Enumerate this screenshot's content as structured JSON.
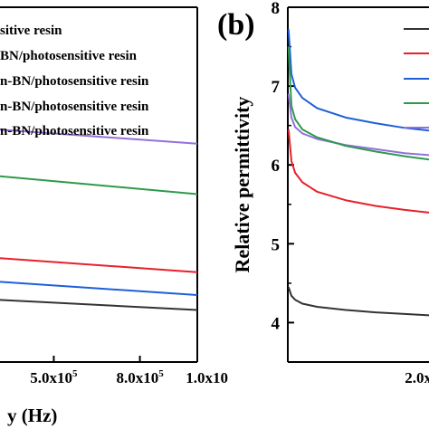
{
  "chart_data": [
    {
      "type": "line",
      "title": "",
      "xlabel": "y (Hz)",
      "ylabel": "",
      "x_tick_labels": [
        "5.0x10",
        "8.0x10",
        "1.0x10"
      ],
      "x_tick_exponents": [
        "5",
        "5",
        ""
      ],
      "xlim": [
        300000,
        1000000
      ],
      "ylim": [
        3.5,
        8.0
      ],
      "legend_position": "top",
      "legend": [
        "sitive resin",
        "BN/photosensitive resin",
        "n-BN/photosensitive resin",
        "n-BN/photosensitive resin",
        "n-BN/photosensitive resin"
      ],
      "series": [
        {
          "color": "#9370DB",
          "x": [
            300000,
            1000000
          ],
          "values": [
            6.45,
            6.27
          ]
        },
        {
          "color": "#2E9A4C",
          "x": [
            300000,
            1000000
          ],
          "values": [
            5.86,
            5.63
          ]
        },
        {
          "color": "#E8202A",
          "x": [
            300000,
            1000000
          ],
          "values": [
            4.82,
            4.64
          ]
        },
        {
          "color": "#1E5FD9",
          "x": [
            300000,
            1000000
          ],
          "values": [
            4.52,
            4.35
          ]
        },
        {
          "color": "#333333",
          "x": [
            300000,
            1000000
          ],
          "values": [
            4.29,
            4.16
          ]
        }
      ]
    },
    {
      "type": "line",
      "panel_label": "(b)",
      "title": "",
      "xlabel": "",
      "ylabel": "Relative permittivity",
      "y_ticks": [
        "4",
        "5",
        "6",
        "7",
        "8"
      ],
      "x_tick_labels": [
        "2.0x10"
      ],
      "x_tick_exponents": [
        "5"
      ],
      "xlim": [
        0,
        300000
      ],
      "ylim": [
        3.5,
        8.0
      ],
      "legend_position": "top-right",
      "series": [
        {
          "color": "#1E5FD9",
          "x": [
            1000,
            5000,
            10000,
            20000,
            40000,
            80000,
            120000,
            160000,
            200000,
            250000,
            300000
          ],
          "values": [
            7.72,
            7.15,
            6.98,
            6.85,
            6.72,
            6.6,
            6.53,
            6.47,
            6.43,
            6.38,
            6.33
          ]
        },
        {
          "color": "#9370DB",
          "x": [
            1000,
            5000,
            10000,
            20000,
            40000,
            80000,
            120000,
            160000,
            200000,
            250000,
            300000
          ],
          "values": [
            6.9,
            6.6,
            6.48,
            6.4,
            6.33,
            6.25,
            6.2,
            6.15,
            6.12,
            6.08,
            6.05
          ]
        },
        {
          "color": "#2E9A4C",
          "x": [
            1000,
            5000,
            10000,
            20000,
            40000,
            80000,
            120000,
            160000,
            200000,
            250000,
            300000
          ],
          "values": [
            7.5,
            6.75,
            6.58,
            6.45,
            6.35,
            6.24,
            6.17,
            6.11,
            6.06,
            6.0,
            5.95
          ]
        },
        {
          "color": "#E8202A",
          "x": [
            1000,
            5000,
            10000,
            20000,
            40000,
            80000,
            120000,
            160000,
            200000,
            250000,
            300000
          ],
          "values": [
            6.45,
            6.05,
            5.9,
            5.78,
            5.66,
            5.55,
            5.48,
            5.43,
            5.39,
            5.36,
            5.32
          ]
        },
        {
          "color": "#333333",
          "x": [
            1000,
            5000,
            10000,
            20000,
            40000,
            80000,
            120000,
            160000,
            200000,
            250000,
            300000
          ],
          "values": [
            4.45,
            4.34,
            4.29,
            4.24,
            4.2,
            4.16,
            4.13,
            4.11,
            4.09,
            4.08,
            4.06
          ]
        }
      ]
    }
  ]
}
